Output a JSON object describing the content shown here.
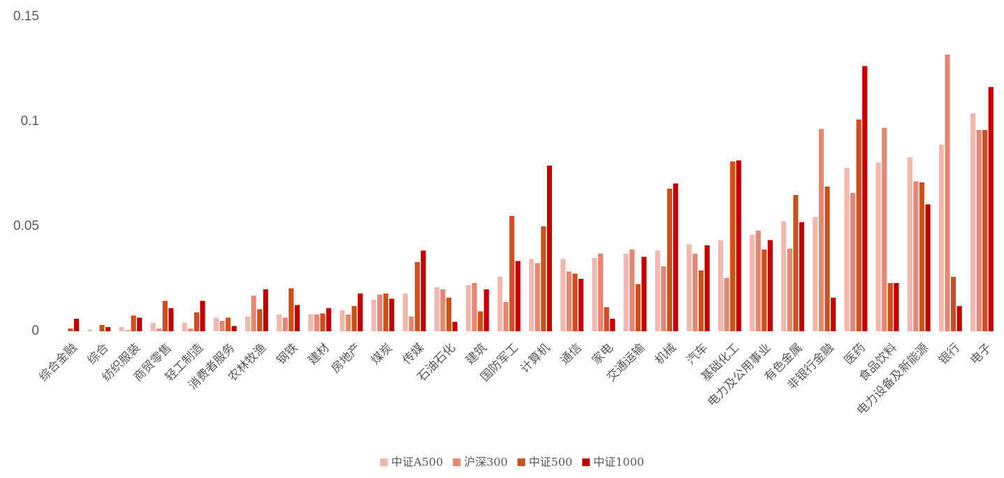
{
  "chart_data": {
    "type": "bar",
    "categories": [
      "综合金融",
      "综合",
      "纺织服装",
      "商贸零售",
      "轻工制造",
      "消费者服务",
      "农林牧渔",
      "钢铁",
      "建材",
      "房地产",
      "煤炭",
      "传媒",
      "石油石化",
      "建筑",
      "国防军工",
      "计算机",
      "通信",
      "家电",
      "交通运输",
      "机械",
      "汽车",
      "基础化工",
      "电力及公用事业",
      "有色金属",
      "非银行金融",
      "医药",
      "食品饮料",
      "电力设备及新能源",
      "银行",
      "电子"
    ],
    "series": [
      {
        "name": "中证A500",
        "color": "#f0b9b0",
        "values": [
          0,
          0.0008,
          0.002,
          0.004,
          0.004,
          0.0065,
          0.007,
          0.008,
          0.008,
          0.01,
          0.015,
          0.018,
          0.021,
          0.022,
          0.026,
          0.0345,
          0.0345,
          0.035,
          0.037,
          0.0385,
          0.0415,
          0.0435,
          0.046,
          0.0525,
          0.0545,
          0.078,
          0.0805,
          0.083,
          0.089,
          0.104
        ]
      },
      {
        "name": "沪深300",
        "color": "#e08a75",
        "values": [
          0,
          0,
          0.0005,
          0.0013,
          0.0013,
          0.005,
          0.017,
          0.0065,
          0.008,
          0.008,
          0.0175,
          0.007,
          0.02,
          0.023,
          0.014,
          0.0325,
          0.0285,
          0.037,
          0.039,
          0.031,
          0.037,
          0.0255,
          0.048,
          0.0395,
          0.0965,
          0.066,
          0.097,
          0.0715,
          0.132,
          0.096
        ]
      },
      {
        "name": "中证500",
        "color": "#c9511f",
        "values": [
          0.0013,
          0.003,
          0.0075,
          0.0145,
          0.009,
          0.0065,
          0.0105,
          0.0205,
          0.0085,
          0.012,
          0.018,
          0.033,
          0.016,
          0.0095,
          0.055,
          0.05,
          0.0275,
          0.0115,
          0.0225,
          0.068,
          0.029,
          0.081,
          0.039,
          0.065,
          0.069,
          0.101,
          0.023,
          0.071,
          0.026,
          0.096
        ]
      },
      {
        "name": "中证1000",
        "color": "#c00000",
        "values": [
          0.006,
          0.002,
          0.0065,
          0.011,
          0.0145,
          0.0025,
          0.02,
          0.0125,
          0.011,
          0.018,
          0.0155,
          0.0385,
          0.0045,
          0.02,
          0.0335,
          0.079,
          0.025,
          0.006,
          0.0355,
          0.0705,
          0.041,
          0.0815,
          0.0435,
          0.052,
          0.016,
          0.1265,
          0.023,
          0.0605,
          0.012,
          0.1165
        ]
      }
    ],
    "ylim": [
      0,
      0.15
    ],
    "yticks": [
      0,
      0.05,
      0.1,
      0.15
    ],
    "grid": false
  }
}
